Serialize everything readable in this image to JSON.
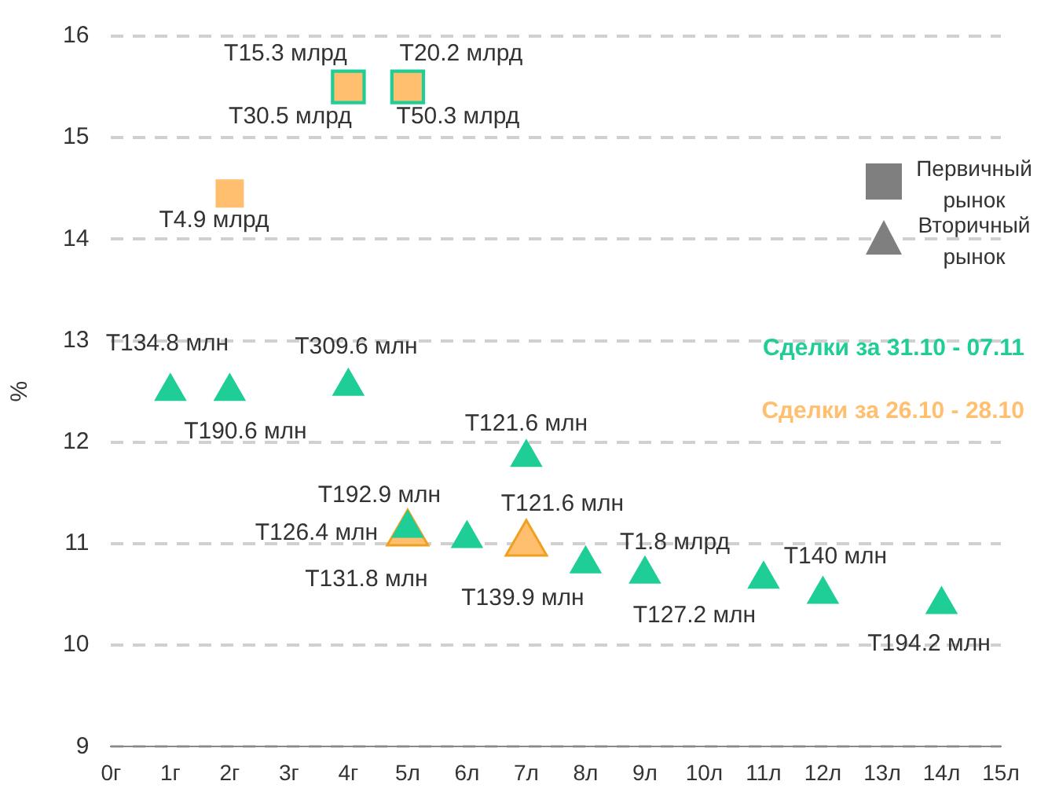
{
  "chart_data": {
    "type": "scatter",
    "ylabel": "%",
    "xlim": [
      0,
      15
    ],
    "xticks": [
      {
        "value": 0,
        "label": "0г"
      },
      {
        "value": 1,
        "label": "1г"
      },
      {
        "value": 2,
        "label": "2г"
      },
      {
        "value": 3,
        "label": "3г"
      },
      {
        "value": 4,
        "label": "4г"
      },
      {
        "value": 5,
        "label": "5л"
      },
      {
        "value": 6,
        "label": "6л"
      },
      {
        "value": 7,
        "label": "7л"
      },
      {
        "value": 8,
        "label": "8л"
      },
      {
        "value": 9,
        "label": "9л"
      },
      {
        "value": 10,
        "label": "10л"
      },
      {
        "value": 11,
        "label": "11л"
      },
      {
        "value": 12,
        "label": "12л"
      },
      {
        "value": 13,
        "label": "13л"
      },
      {
        "value": 14,
        "label": "14л"
      },
      {
        "value": 15,
        "label": "15л"
      }
    ],
    "ylim": [
      9,
      16
    ],
    "yticks": [
      9,
      10,
      11,
      12,
      13,
      14,
      15,
      16
    ],
    "grid": "y",
    "series": [
      {
        "color": "#1fce96",
        "marker": "square",
        "x": [
          4,
          5
        ],
        "values": [
          15.5,
          15.5
        ],
        "value_labels": [
          "T15.3 млрд",
          "T20.2 млрд"
        ]
      },
      {
        "color": "#ffbf6e",
        "marker": "square",
        "x": [
          4,
          5,
          2
        ],
        "values": [
          15.5,
          15.5,
          14.45
        ],
        "value_labels": [
          "T30.5 млрд",
          "T50.3 млрд",
          "T4.9 млрд"
        ]
      },
      {
        "color": "#ffbf6e",
        "marker": "triangle",
        "x": [
          5,
          7
        ],
        "values": [
          11.1,
          11.0
        ],
        "value_labels": [
          "T126.4 млн",
          "T121.6 млн"
        ]
      },
      {
        "color": "#1fce96",
        "marker": "triangle",
        "x": [
          1,
          2,
          4,
          5,
          6,
          7,
          8,
          9,
          11,
          12,
          14
        ],
        "values": [
          12.5,
          12.5,
          12.55,
          11.15,
          11.05,
          11.85,
          10.8,
          10.7,
          10.65,
          10.5,
          10.4
        ],
        "value_labels": [
          "T134.8 млн",
          "T190.6 млн",
          "T309.6 млн",
          "T192.9 млн",
          "T131.8 млн",
          "T121.6 млн",
          "T139.9 млн",
          "T1.8 млрд",
          "T127.2 млн",
          "T140 млн",
          "T194.2 млн"
        ]
      }
    ],
    "annotations": [
      "Первичный рынок",
      "Вторичный рынок",
      "Сделки за 31.10 - 07.11",
      "Сделки за 26.10 - 28.10"
    ]
  }
}
